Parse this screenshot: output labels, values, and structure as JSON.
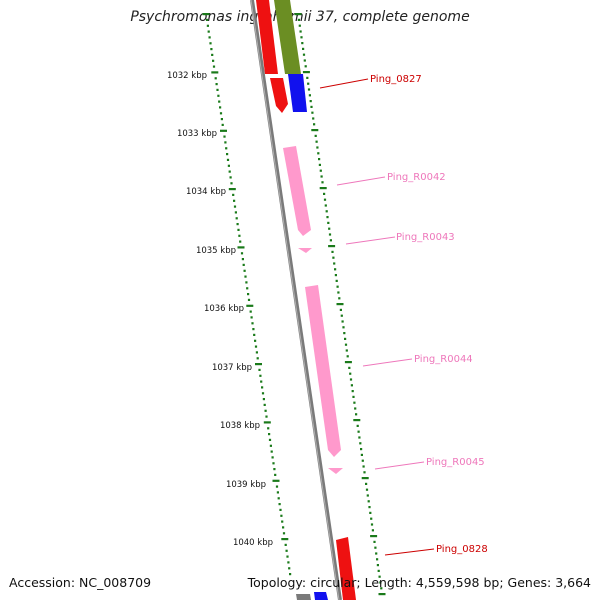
{
  "title": "Psychromonas ingrahamii 37, complete genome",
  "footer": {
    "accession": "Accession: NC_008709",
    "topology": "Topology: circular; Length: 4,559,598 bp; Genes: 3,664"
  },
  "colors": {
    "backbone": "#7a7a7a",
    "tick": "#1a7a1a",
    "cds_forward": "#ee1111",
    "cds_reverse": "#1111ee",
    "gene": "#6b8e23",
    "rna": "#ff99cc",
    "label_cds": "#cc0000",
    "label_rna": "#ee77bb"
  },
  "scale": {
    "tick_labels": [
      "1032 kbp",
      "1033 kbp",
      "1034 kbp",
      "1035 kbp",
      "1036 kbp",
      "1037 kbp",
      "1038 kbp",
      "1039 kbp",
      "1040 kbp"
    ]
  },
  "features": [
    {
      "label": "Ping_0827",
      "kind": "cds"
    },
    {
      "label": "Ping_R0042",
      "kind": "rna"
    },
    {
      "label": "Ping_R0043",
      "kind": "rna"
    },
    {
      "label": "Ping_R0044",
      "kind": "rna"
    },
    {
      "label": "Ping_R0045",
      "kind": "rna"
    },
    {
      "label": "Ping_0828",
      "kind": "cds"
    }
  ]
}
